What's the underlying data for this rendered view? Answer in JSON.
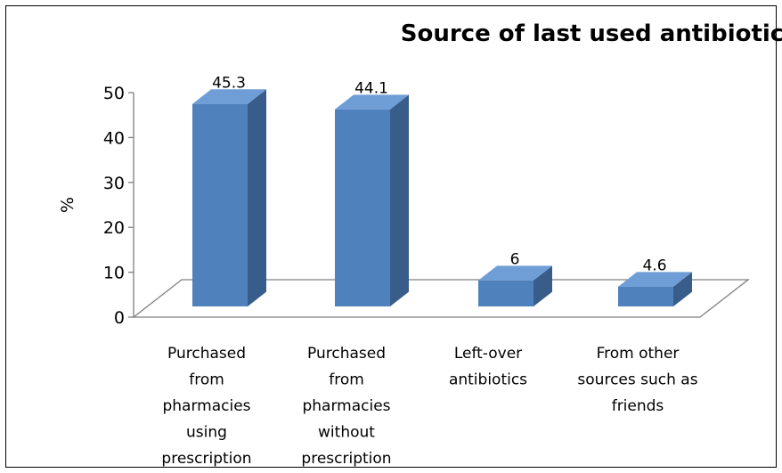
{
  "chart_data": {
    "type": "bar",
    "title": "Source of last used antibiotic",
    "ylabel": "%",
    "xlabel": "",
    "ylim": [
      0,
      50
    ],
    "yticks": [
      0,
      10,
      20,
      30,
      40,
      50
    ],
    "categories": [
      [
        "Purchased",
        "from",
        "pharmacies",
        "using",
        "prescription"
      ],
      [
        "Purchased",
        "from",
        "pharmacies",
        "without",
        "prescription"
      ],
      [
        "Left-over",
        "antibiotics"
      ],
      [
        "From other",
        "sources such as",
        "friends"
      ]
    ],
    "values": [
      45.3,
      44.1,
      6,
      4.6
    ],
    "data_labels": [
      "45.3",
      "44.1",
      "6",
      "4.6"
    ],
    "grid": false,
    "legend": "none",
    "style": "3d-column"
  },
  "colors": {
    "bar_front": "#4f81bd",
    "bar_top": "#6f9ed6",
    "bar_side": "#385d8a",
    "axis": "#7f7f7f"
  }
}
